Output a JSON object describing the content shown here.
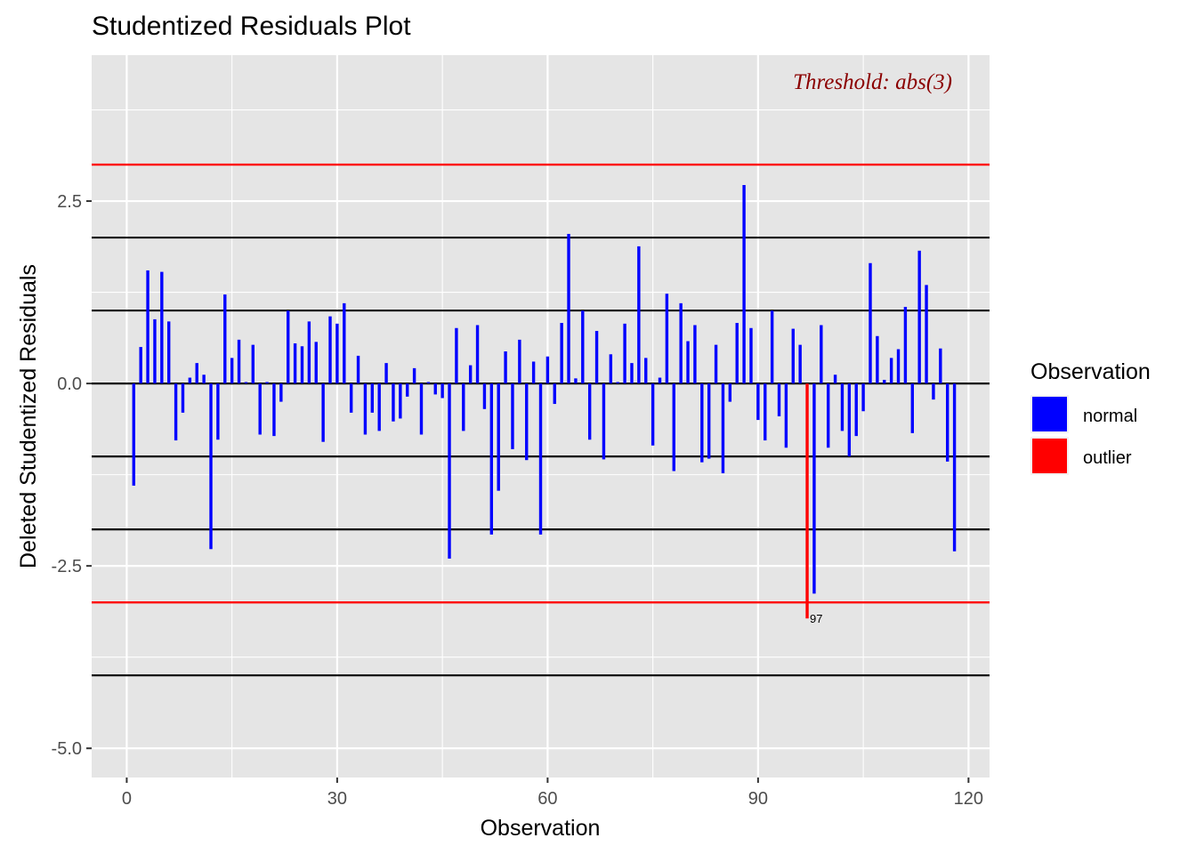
{
  "chart_data": {
    "type": "bar",
    "title": "Studentized Residuals Plot",
    "xlabel": "Observation",
    "ylabel": "Deleted Studentized Residuals",
    "xlim": [
      -5,
      123
    ],
    "ylim": [
      -5.4,
      4.5
    ],
    "x_ticks": [
      0,
      30,
      60,
      90,
      120
    ],
    "y_ticks": [
      2.5,
      0.0,
      -2.5,
      -5.0
    ],
    "y_tick_labels": [
      "2.5",
      "0.0",
      "-2.5",
      "-5.0"
    ],
    "grid": true,
    "threshold_label": "Threshold: abs(3)",
    "threshold_lines": [
      3,
      -3
    ],
    "reference_lines": [
      2,
      1,
      0,
      -1,
      -2,
      -4
    ],
    "outlier_labels": [
      {
        "x": 97,
        "label": "97"
      }
    ],
    "legend": {
      "title": "Observation",
      "position": "right",
      "entries": [
        {
          "label": "normal",
          "color": "#0000ff"
        },
        {
          "label": "outlier",
          "color": "#ff0000"
        }
      ]
    },
    "colors": {
      "normal": "#0000ff",
      "outlier": "#ff0000",
      "threshold_line": "#ff0000",
      "reference_line": "#000000",
      "threshold_text": "#8b0000",
      "panel": "#e5e5e5"
    },
    "series": [
      {
        "name": "normal",
        "x": [
          1,
          2,
          3,
          4,
          5,
          6,
          7,
          8,
          9,
          10,
          11,
          12,
          13,
          14,
          15,
          16,
          17,
          18,
          19,
          20,
          21,
          22,
          23,
          24,
          25,
          26,
          27,
          28,
          29,
          30,
          31,
          32,
          33,
          34,
          35,
          36,
          37,
          38,
          39,
          40,
          41,
          42,
          43,
          44,
          45,
          46,
          47,
          48,
          49,
          50,
          51,
          52,
          53,
          54,
          55,
          56,
          57,
          58,
          59,
          60,
          61,
          62,
          63,
          64,
          65,
          66,
          67,
          68,
          69,
          70,
          71,
          72,
          73,
          74,
          75,
          76,
          77,
          78,
          79,
          80,
          81,
          82,
          83,
          84,
          85,
          86,
          87,
          88,
          89,
          90,
          91,
          92,
          93,
          94,
          95,
          96,
          98,
          99,
          100,
          101,
          102,
          103,
          104,
          105,
          106,
          107,
          108,
          109,
          110,
          111,
          112,
          113,
          114,
          115,
          116,
          117,
          118
        ],
        "values": [
          -1.4,
          0.5,
          1.55,
          0.88,
          1.53,
          0.85,
          -0.78,
          -0.4,
          0.08,
          0.28,
          0.12,
          -2.27,
          -0.77,
          1.22,
          0.35,
          0.6,
          0.02,
          0.53,
          -0.7,
          0.02,
          -0.72,
          -0.25,
          1.0,
          0.55,
          0.51,
          0.85,
          0.57,
          -0.8,
          0.92,
          0.82,
          1.1,
          -0.4,
          0.38,
          -0.7,
          -0.4,
          -0.65,
          0.28,
          -0.52,
          -0.48,
          -0.18,
          0.21,
          -0.7,
          0.02,
          -0.15,
          -0.2,
          -2.4,
          0.76,
          -0.65,
          0.25,
          0.8,
          -0.35,
          -2.07,
          -1.47,
          0.44,
          -0.9,
          0.6,
          -1.05,
          0.3,
          -2.07,
          0.37,
          -0.28,
          0.83,
          2.05,
          0.07,
          1.0,
          -0.77,
          0.72,
          -1.04,
          0.4,
          0.02,
          0.82,
          0.28,
          1.88,
          0.35,
          -0.85,
          0.08,
          1.23,
          -1.2,
          1.1,
          0.58,
          0.8,
          -1.08,
          -1.03,
          0.53,
          -1.23,
          -0.25,
          0.83,
          2.72,
          0.76,
          -0.5,
          -0.78,
          1.0,
          -0.45,
          -0.88,
          0.75,
          0.53,
          -2.88,
          0.8,
          -0.88,
          0.12,
          -0.65,
          -1.0,
          -0.72,
          -0.38,
          1.65,
          0.65,
          0.05,
          0.35,
          0.47,
          1.05,
          -0.68,
          1.82,
          1.35,
          -0.22,
          0.48,
          -1.07,
          -2.3
        ]
      },
      {
        "name": "outlier",
        "x": [
          97
        ],
        "values": [
          -3.22
        ]
      }
    ]
  }
}
